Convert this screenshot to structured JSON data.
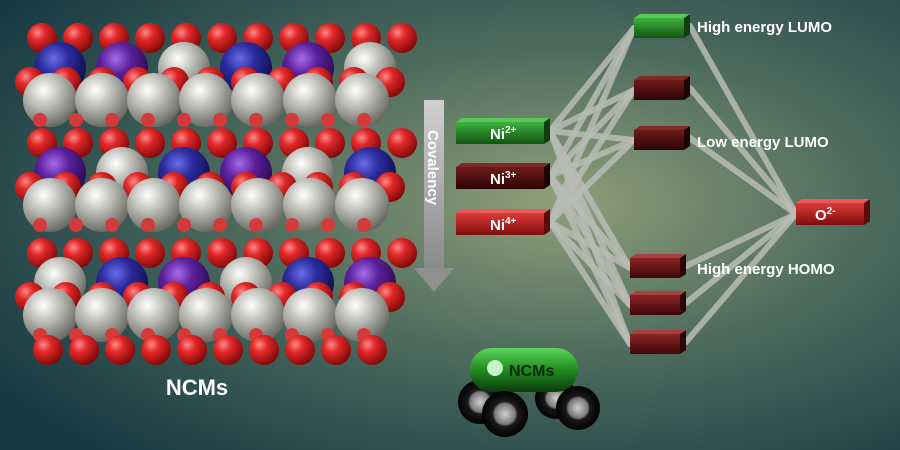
{
  "figure": {
    "crystal_label": "NCMs",
    "arrow_label": "Covalency",
    "car_label": "NCMs"
  },
  "levels": {
    "ni2": {
      "base": "Ni",
      "sup": "2+"
    },
    "ni3": {
      "base": "Ni",
      "sup": "3+"
    },
    "ni4": {
      "base": "Ni",
      "sup": "4+"
    },
    "o2": {
      "base": "O",
      "sup": "2-"
    }
  },
  "annotations": {
    "high_lumo": "High energy LUMO",
    "low_lumo": "Low energy LUMO",
    "high_homo": "High energy HOMO"
  },
  "colors": {
    "ni2_green": "#1f7a1f",
    "ni3_dark_red": "#4a0a0a",
    "ni4_red": "#b31a1a",
    "oxygen_red": "#d21f1f",
    "nickel_silver": "#b9b9b3",
    "cobalt_blue": "#2a2a9c",
    "manganese_purple": "#5a1f9c"
  }
}
